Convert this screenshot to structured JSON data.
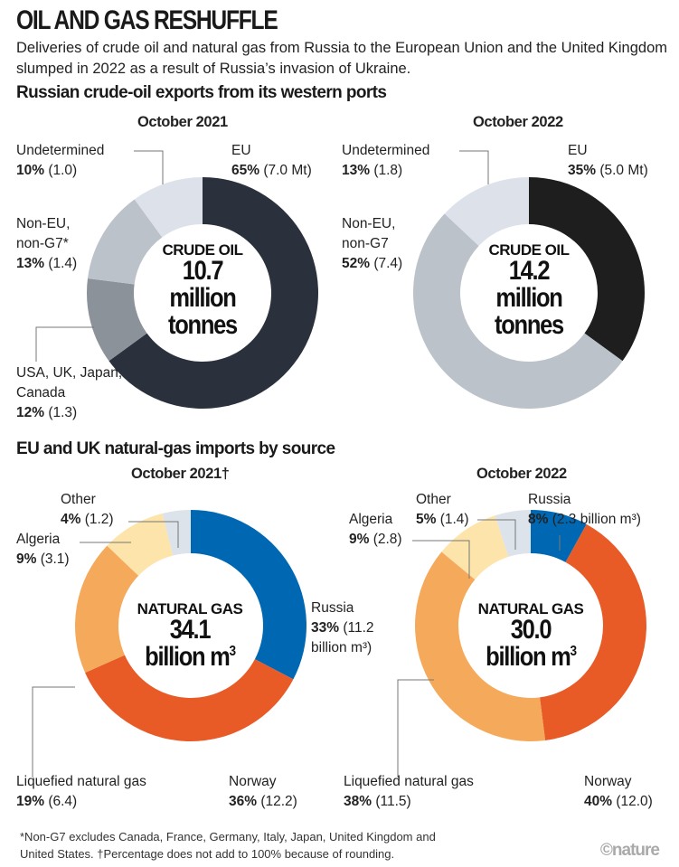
{
  "title": "OIL AND GAS RESHUFFLE",
  "subtitle": "Deliveries of crude oil and natural gas from Russia to the European Union and the United Kingdom slumped in 2022 as a result of Russia’s invasion of Ukraine.",
  "footnote_1": "*Non-G7 excludes Canada, France, Germany, Italy, Japan, United Kingdom and",
  "footnote_2": "United States. †Percentage does not add to 100% because of rounding.",
  "logo": "©nature",
  "chart_data": [
    {
      "type": "pie",
      "section": "Russian crude-oil exports from its western ports",
      "title": "October 2021",
      "center_label": "CRUDE OIL",
      "center_value": "10.7",
      "center_unit_1": "million",
      "center_unit_2": "tonnes",
      "slices": [
        {
          "name": "EU",
          "pct": 65,
          "pct_label": "65%",
          "value_label": "(7.0 Mt)",
          "color": "#2b313c"
        },
        {
          "name": "USA, UK, Japan, Canada",
          "pct": 12,
          "pct_label": "12%",
          "value_label": "(1.3)",
          "color": "#8b929a"
        },
        {
          "name": "Non-EU, non-G7*",
          "pct": 13,
          "pct_label": "13%",
          "value_label": "(1.4)",
          "color": "#bcc2ca"
        },
        {
          "name": "Undetermined",
          "pct": 10,
          "pct_label": "10%",
          "value_label": "(1.0)",
          "color": "#dde2ea"
        }
      ]
    },
    {
      "type": "pie",
      "title": "October 2022",
      "center_label": "CRUDE OIL",
      "center_value": "14.2",
      "center_unit_1": "million",
      "center_unit_2": "tonnes",
      "slices": [
        {
          "name": "EU",
          "pct": 35,
          "pct_label": "35%",
          "value_label": "(5.0 Mt)",
          "color": "#1e1e1e"
        },
        {
          "name": "Non-EU, non-G7",
          "pct": 52,
          "pct_label": "52%",
          "value_label": "(7.4)",
          "color": "#bcc2ca"
        },
        {
          "name": "Undetermined",
          "pct": 13,
          "pct_label": "13%",
          "value_label": "(1.8)",
          "color": "#dde2ea"
        }
      ]
    },
    {
      "type": "pie",
      "section": "EU and UK natural-gas imports by source",
      "title": "October 2021†",
      "center_label": "NATURAL GAS",
      "center_value": "34.1",
      "center_unit_1": "billion m",
      "center_unit_sup": "3",
      "slices": [
        {
          "name": "Russia",
          "pct": 33,
          "pct_label": "33%",
          "value_label": "(11.2 billion m³)",
          "color": "#0068b3"
        },
        {
          "name": "Norway",
          "pct": 36,
          "pct_label": "36%",
          "value_label": "(12.2)",
          "color": "#e85a26"
        },
        {
          "name": "Liquefied natural gas",
          "pct": 19,
          "pct_label": "19%",
          "value_label": "(6.4)",
          "color": "#f5a95a"
        },
        {
          "name": "Algeria",
          "pct": 9,
          "pct_label": "9%",
          "value_label": "(3.1)",
          "color": "#fde4ab"
        },
        {
          "name": "Other",
          "pct": 4,
          "pct_label": "4%",
          "value_label": "(1.2)",
          "color": "#dde3ea"
        }
      ]
    },
    {
      "type": "pie",
      "title": "October 2022",
      "center_label": "NATURAL GAS",
      "center_value": "30.0",
      "center_unit_1": "billion m",
      "center_unit_sup": "3",
      "slices": [
        {
          "name": "Russia",
          "pct": 8,
          "pct_label": "8%",
          "value_label": "(2.3 billion m³)",
          "color": "#0068b3"
        },
        {
          "name": "Norway",
          "pct": 40,
          "pct_label": "40%",
          "value_label": "(12.0)",
          "color": "#e85a26"
        },
        {
          "name": "Liquefied natural gas",
          "pct": 38,
          "pct_label": "38%",
          "value_label": "(11.5)",
          "color": "#f5a95a"
        },
        {
          "name": "Algeria",
          "pct": 9,
          "pct_label": "9%",
          "value_label": "(2.8)",
          "color": "#fde4ab"
        },
        {
          "name": "Other",
          "pct": 5,
          "pct_label": "5%",
          "value_label": "(1.4)",
          "color": "#dde3ea"
        }
      ]
    }
  ]
}
